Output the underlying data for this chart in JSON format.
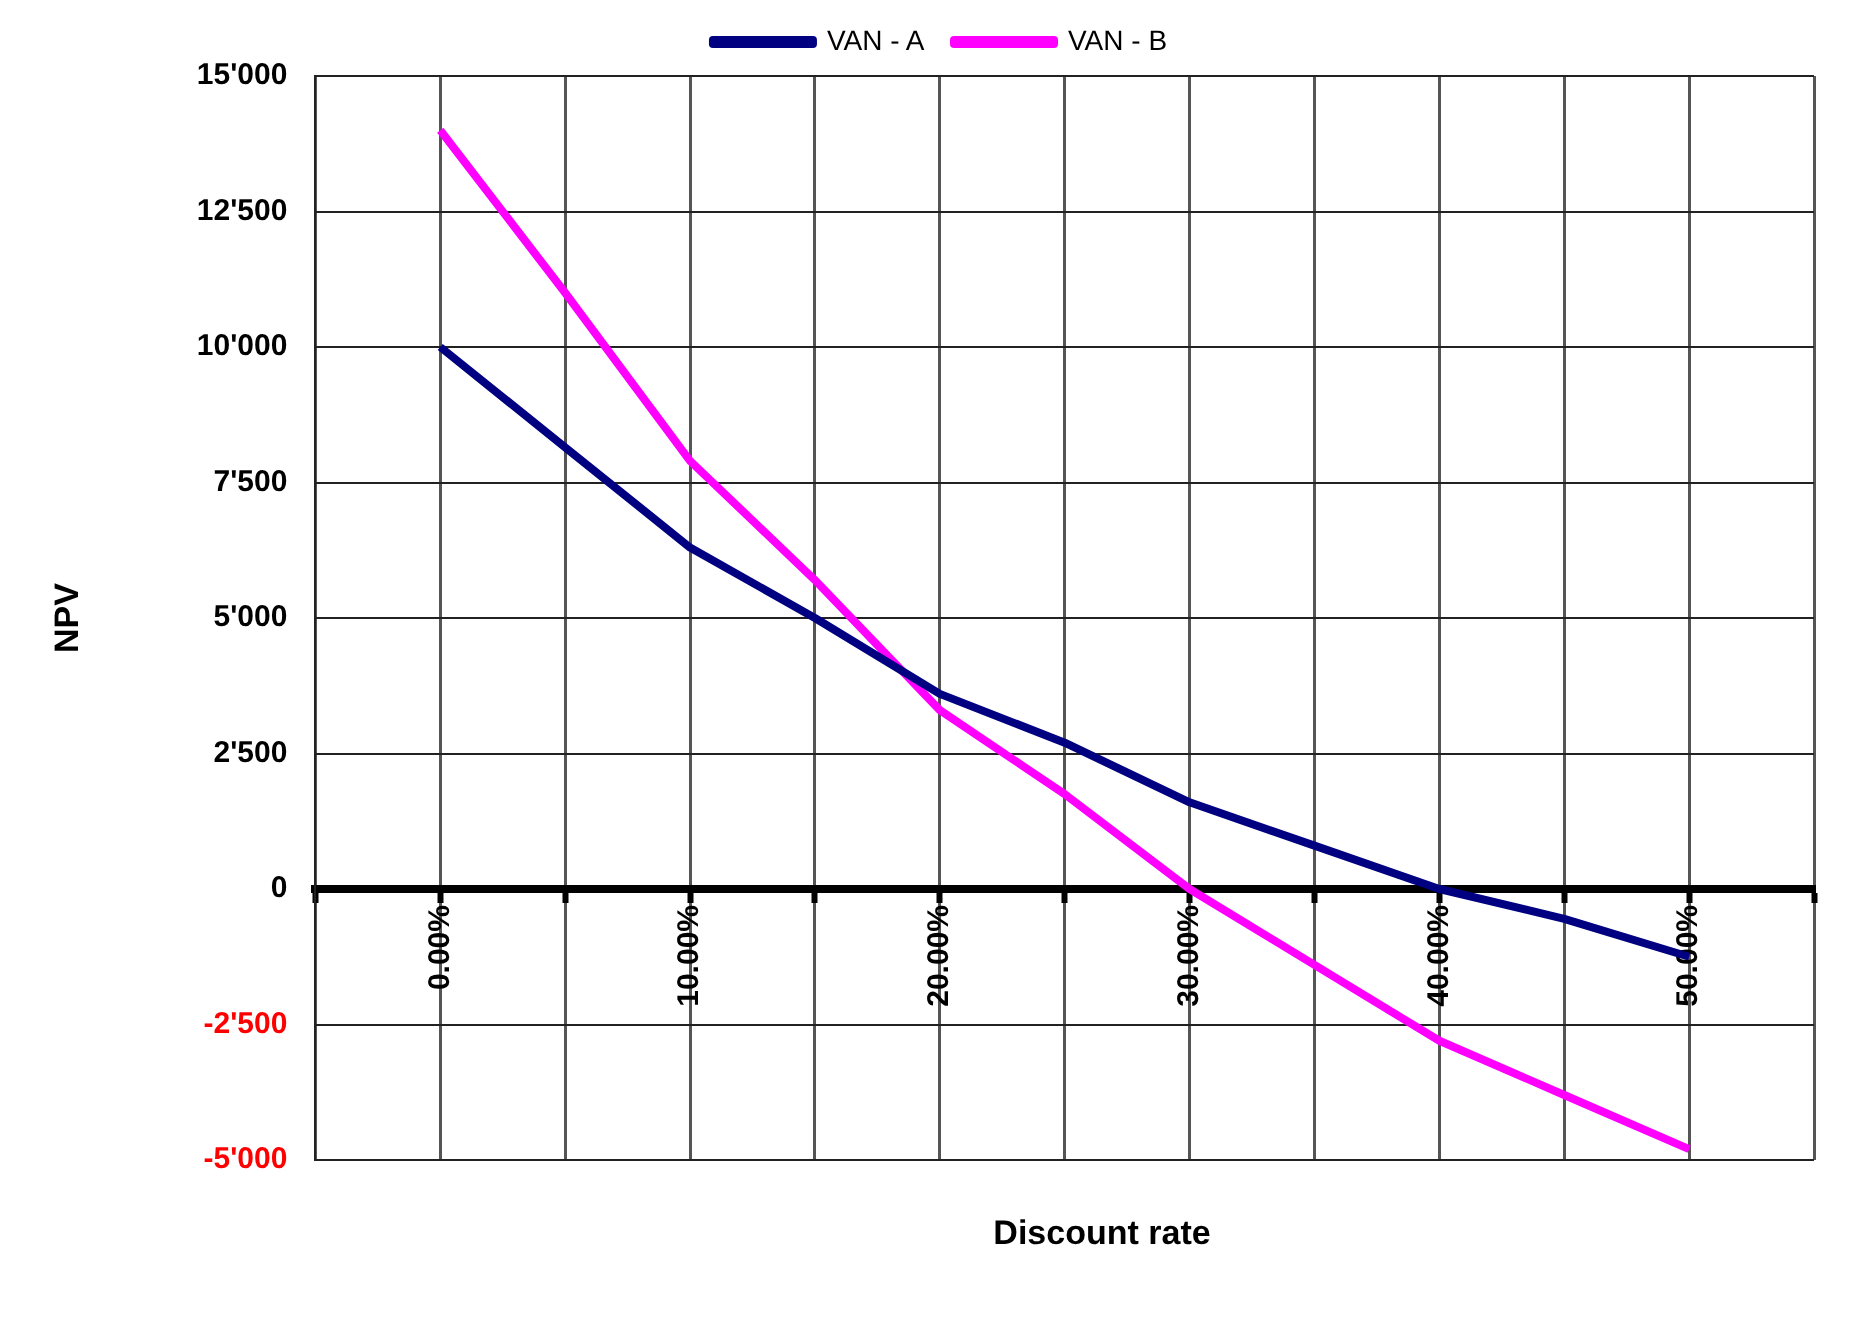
{
  "chart_data": {
    "type": "line",
    "xlabel": "Discount rate",
    "ylabel": "NPV",
    "x": [
      0,
      5,
      10,
      15,
      20,
      25,
      30,
      35,
      40,
      45,
      50
    ],
    "series": [
      {
        "name": "VAN - A",
        "color": "#000080",
        "values": [
          10000,
          8150,
          6300,
          5000,
          3600,
          2700,
          1600,
          800,
          0,
          -550,
          -1250
        ]
      },
      {
        "name": "VAN - B",
        "color": "#ff00ff",
        "values": [
          14000,
          11000,
          7900,
          5700,
          3300,
          1750,
          0,
          -1400,
          -2800,
          -3800,
          -4800
        ]
      }
    ],
    "xlim": [
      -5,
      55
    ],
    "xticks": [
      {
        "value": -5,
        "label": null
      },
      {
        "value": 0,
        "label": "0.00%"
      },
      {
        "value": 5,
        "label": null
      },
      {
        "value": 10,
        "label": "10.00%"
      },
      {
        "value": 15,
        "label": null
      },
      {
        "value": 20,
        "label": "20.00%"
      },
      {
        "value": 25,
        "label": null
      },
      {
        "value": 30,
        "label": "30.00%"
      },
      {
        "value": 35,
        "label": null
      },
      {
        "value": 40,
        "label": "40.00%"
      },
      {
        "value": 45,
        "label": null
      },
      {
        "value": 50,
        "label": "50.00%"
      },
      {
        "value": 55,
        "label": null
      }
    ],
    "ylim": [
      -5000,
      15000
    ],
    "yticks": [
      {
        "value": -5000,
        "label": "-5'000"
      },
      {
        "value": -2500,
        "label": "-2'500"
      },
      {
        "value": 0,
        "label": "0"
      },
      {
        "value": 2500,
        "label": "2'500"
      },
      {
        "value": 5000,
        "label": "5'000"
      },
      {
        "value": 7500,
        "label": "7'500"
      },
      {
        "value": 10000,
        "label": "10'000"
      },
      {
        "value": 12500,
        "label": "12'500"
      },
      {
        "value": 15000,
        "label": "15'000"
      }
    ],
    "grid": true,
    "legend": "top"
  }
}
